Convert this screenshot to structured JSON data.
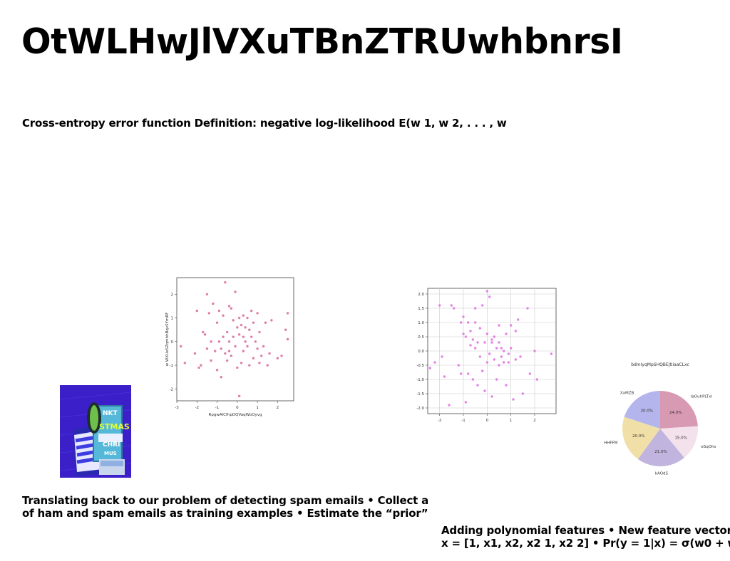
{
  "slide": {
    "title": "OtWLHwJlVXuTBnZTRUwhbnrsI",
    "subtitle": "Cross-entropy error function Definition: negative log-likelihood E(w 1, w 2, . . . , w",
    "paragraph1": {
      "line1": "Translating back to our problem of detecting spam emails • Collect a",
      "line2": "of ham and spam emails as training examples • Estimate the “prior”"
    },
    "paragraph2": {
      "line1": "Adding polynomial features • New feature vector",
      "line2": "x = [1, x1, x2, x2 1, x2 2] • Pr(y = 1|x) = σ(w0 + w1x1 +"
    },
    "photo_text": [
      "NKT",
      "STMAS",
      "CHRI",
      "MUS"
    ]
  },
  "chart_data": [
    {
      "type": "scatter",
      "xlabel": "RpgwAlCfhpDQVaqWoOyvg",
      "ylabel": "w WXUeSZqmhhBqvSYmRF",
      "xlim": [
        -3,
        2.8
      ],
      "ylim": [
        -2.5,
        2.7
      ],
      "xticks": [
        "-3",
        "-2",
        "-1",
        "0",
        "1",
        "2"
      ],
      "yticks": [
        "-2",
        "-1",
        "0",
        "1",
        "2"
      ],
      "grid": false,
      "color": "#d9669a",
      "x": [
        -2.8,
        -2.6,
        -2.0,
        -1.8,
        -1.7,
        -1.5,
        -1.5,
        -1.4,
        -1.3,
        -1.3,
        -1.2,
        -1.1,
        -1.0,
        -1.0,
        -0.9,
        -0.9,
        -0.8,
        -0.8,
        -0.7,
        -0.7,
        -0.6,
        -0.6,
        -0.5,
        -0.5,
        -0.4,
        -0.4,
        -0.3,
        -0.3,
        -0.2,
        -0.2,
        -0.1,
        -0.1,
        0.0,
        0.0,
        0.1,
        0.1,
        0.1,
        0.2,
        0.2,
        0.3,
        0.3,
        0.4,
        0.4,
        0.5,
        0.5,
        0.6,
        0.6,
        0.7,
        0.7,
        0.8,
        0.8,
        0.9,
        1.0,
        1.0,
        1.1,
        1.1,
        1.2,
        1.3,
        1.4,
        1.5,
        1.6,
        1.7,
        2.0,
        2.2,
        2.4,
        2.5,
        2.5,
        -1.6,
        -0.4,
        0.3,
        -2.1,
        -1.9
      ],
      "y": [
        -0.2,
        -0.9,
        1.3,
        -1.0,
        0.4,
        -0.3,
        2.0,
        1.2,
        -0.8,
        0.0,
        1.6,
        -0.4,
        0.8,
        -1.2,
        0.0,
        1.3,
        -0.3,
        -1.5,
        0.2,
        1.1,
        -0.5,
        2.5,
        0.4,
        -0.8,
        1.5,
        0.0,
        1.4,
        -0.6,
        0.9,
        0.2,
        -0.2,
        2.1,
        0.6,
        -1.1,
        -2.3,
        1.0,
        0.3,
        0.7,
        -0.9,
        1.1,
        -0.4,
        0.0,
        0.6,
        1.0,
        -0.2,
        0.5,
        -1.0,
        0.2,
        1.3,
        -0.7,
        0.8,
        0.0,
        -0.3,
        1.2,
        -0.9,
        0.4,
        -0.6,
        -0.2,
        0.8,
        -1.0,
        -0.5,
        0.9,
        -0.7,
        -0.6,
        0.5,
        0.1,
        1.2,
        0.3,
        -0.4,
        0.2,
        -0.5,
        -1.1
      ]
    },
    {
      "type": "scatter",
      "xlabel": "",
      "ylabel": "",
      "xlim": [
        -2.5,
        2.9
      ],
      "ylim": [
        -2.2,
        2.2
      ],
      "xticks": [
        "-2",
        "-1",
        "0",
        "1",
        "2"
      ],
      "yticks": [
        "-2.0",
        "-1.5",
        "-1.0",
        "-0.5",
        "0.0",
        "0.5",
        "1.0",
        "1.5",
        "2.0"
      ],
      "grid": true,
      "color": "#e070e0",
      "x": [
        -2.4,
        -2.2,
        -2.0,
        -1.9,
        -1.8,
        -1.6,
        -1.5,
        -1.4,
        -1.2,
        -1.1,
        -1.0,
        -1.0,
        -0.9,
        -0.9,
        -0.8,
        -0.8,
        -0.7,
        -0.7,
        -0.6,
        -0.6,
        -0.5,
        -0.5,
        -0.4,
        -0.4,
        -0.3,
        -0.3,
        -0.2,
        -0.2,
        -0.1,
        -0.1,
        0.0,
        0.0,
        0.0,
        0.1,
        0.1,
        0.2,
        0.2,
        0.3,
        0.3,
        0.4,
        0.4,
        0.5,
        0.5,
        0.6,
        0.6,
        0.7,
        0.7,
        0.8,
        0.8,
        0.9,
        1.0,
        1.0,
        1.1,
        1.2,
        1.2,
        1.3,
        1.4,
        1.5,
        1.7,
        1.8,
        2.0,
        2.1,
        2.7,
        -1.1,
        0.5,
        0.9,
        -0.5,
        0.2
      ],
      "y": [
        -0.6,
        -0.4,
        1.6,
        -0.2,
        -0.9,
        -1.9,
        1.6,
        1.5,
        -0.5,
        1.0,
        0.6,
        1.2,
        -1.8,
        0.5,
        -0.8,
        1.0,
        0.2,
        0.7,
        0.4,
        -1.0,
        0.1,
        1.5,
        -1.2,
        0.3,
        0.8,
        -0.2,
        1.6,
        -0.7,
        0.3,
        -1.4,
        2.1,
        0.6,
        -0.4,
        -0.1,
        1.9,
        0.4,
        -1.6,
        -0.3,
        0.5,
        0.1,
        -1.0,
        0.3,
        -0.5,
        0.1,
        -0.2,
        0.0,
        -0.4,
        0.6,
        -1.2,
        -0.1,
        0.9,
        0.1,
        -1.7,
        0.7,
        -0.3,
        1.1,
        -0.2,
        -1.5,
        1.5,
        -0.8,
        0.0,
        -1.0,
        -0.1,
        -0.8,
        0.9,
        -0.4,
        1.0,
        0.3
      ]
    },
    {
      "type": "pie",
      "title": "bdmIyqMpSHQBEjtIiaaCLxc",
      "slices": [
        {
          "label": "IaOuhPLTxl",
          "value": 24.0,
          "pct": "24.0%",
          "color": "#d899b3"
        },
        {
          "label": "eSqOhs",
          "value": 15.0,
          "pct": "15.0%",
          "color": "#f3e1ec"
        },
        {
          "label": "kAOdS",
          "value": 21.0,
          "pct": "21.0%",
          "color": "#c1b4df"
        },
        {
          "label": "HHFFM",
          "value": 20.0,
          "pct": "20.0%",
          "color": "#f0e0a8"
        },
        {
          "label": "XxMZB",
          "value": 20.0,
          "pct": "20.0%",
          "color": "#b3b5ec"
        }
      ]
    }
  ]
}
